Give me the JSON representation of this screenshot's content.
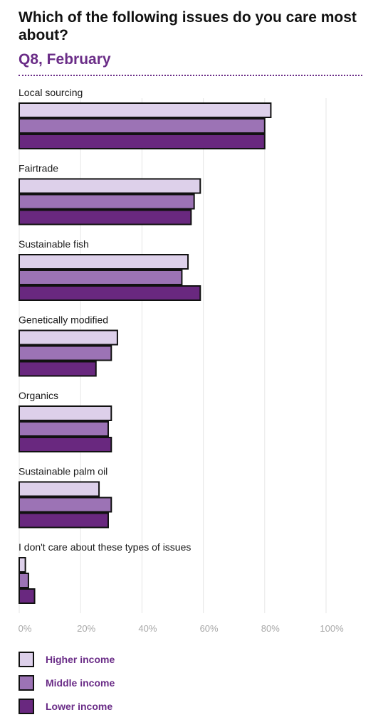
{
  "header": {
    "title": "Which of the following issues do you care most about?",
    "subtitle": "Q8, February"
  },
  "colors": {
    "higher": "#ddd0ea",
    "middle": "#9c73b5",
    "lower": "#69287f",
    "stroke": "#111111",
    "accent": "#6a2c87",
    "grid": "#e6e6e6"
  },
  "chart_data": {
    "type": "bar",
    "orientation": "horizontal",
    "categories": [
      "Local sourcing",
      "Fairtrade",
      "Sustainable fish",
      "Genetically modified",
      "Organics",
      "Sustainable palm oil",
      "I don't care about these types of issues"
    ],
    "series": [
      {
        "name": "Higher income",
        "values": [
          82,
          59,
          55,
          32,
          30,
          26,
          2
        ]
      },
      {
        "name": "Middle income",
        "values": [
          80,
          57,
          53,
          30,
          29,
          30,
          3
        ]
      },
      {
        "name": "Lower income",
        "values": [
          80,
          56,
          59,
          25,
          30,
          29,
          5
        ]
      }
    ],
    "x_ticks": [
      "0%",
      "20%",
      "40%",
      "60%",
      "80%",
      "100%"
    ],
    "xlim": [
      0,
      100
    ],
    "grid": true,
    "legend_position": "bottom-left"
  }
}
